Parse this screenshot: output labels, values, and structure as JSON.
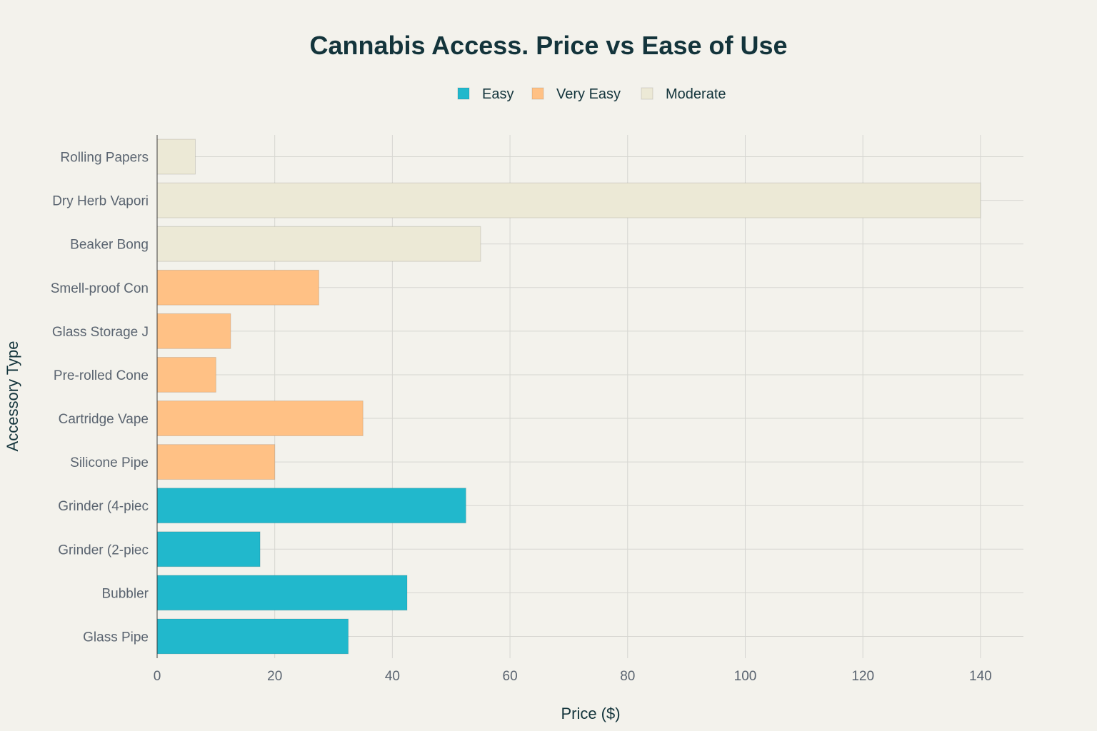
{
  "chart_data": {
    "type": "bar",
    "orientation": "horizontal",
    "title": "Cannabis Access. Price vs Ease of Use",
    "xlabel": "Price ($)",
    "ylabel": "Accessory Type",
    "xlim": [
      0,
      147.3
    ],
    "xticks": [
      0,
      20,
      40,
      60,
      80,
      100,
      120,
      140
    ],
    "grid": true,
    "legend_position": "top-center",
    "categories": [
      "Rolling Papers",
      "Dry Herb Vapori",
      "Beaker Bong",
      "Smell-proof Con",
      "Glass Storage J",
      "Pre-rolled Cone",
      "Cartridge Vape",
      "Silicone Pipe",
      "Grinder (4-piec",
      "Grinder (2-piec",
      "Bubbler",
      "Glass Pipe"
    ],
    "series": [
      {
        "name": "Easy",
        "color": "#21b8cc",
        "points": [
          {
            "category": "Grinder (4-piec",
            "value": 52.5
          },
          {
            "category": "Grinder (2-piec",
            "value": 17.5
          },
          {
            "category": "Bubbler",
            "value": 42.5
          },
          {
            "category": "Glass Pipe",
            "value": 32.5
          }
        ]
      },
      {
        "name": "Very Easy",
        "color": "#ffc185",
        "points": [
          {
            "category": "Smell-proof Con",
            "value": 27.5
          },
          {
            "category": "Glass Storage J",
            "value": 12.5
          },
          {
            "category": "Pre-rolled Cone",
            "value": 10
          },
          {
            "category": "Cartridge Vape",
            "value": 35
          },
          {
            "category": "Silicone Pipe",
            "value": 20
          }
        ]
      },
      {
        "name": "Moderate",
        "color": "#ece9d6",
        "points": [
          {
            "category": "Rolling Papers",
            "value": 6.5
          },
          {
            "category": "Dry Herb Vapori",
            "value": 140
          },
          {
            "category": "Beaker Bong",
            "value": 55
          }
        ]
      }
    ]
  }
}
